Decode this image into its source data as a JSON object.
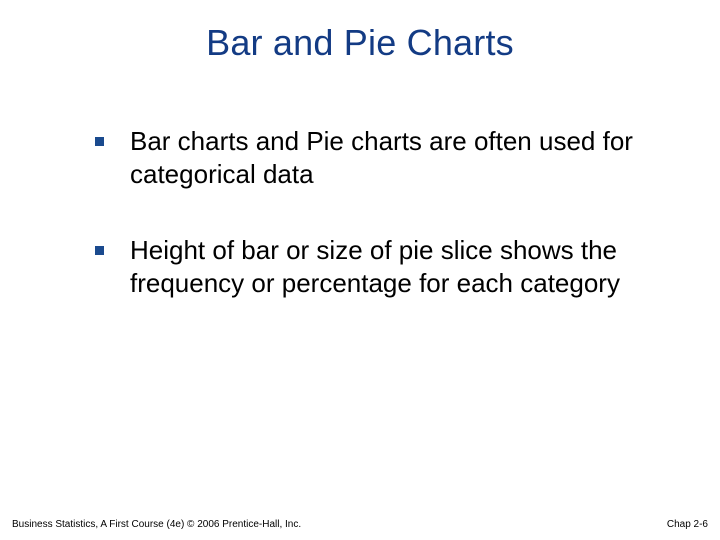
{
  "title": {
    "text": "Bar and Pie Charts",
    "color": "#133b84",
    "font_size": 36
  },
  "bullets": {
    "marker_color": "#1a4a8e",
    "text_color": "#000000",
    "font_size": 26,
    "items": [
      {
        "text": "Bar charts and Pie charts are often used for categorical data"
      },
      {
        "text": "Height of bar or size of pie slice shows the frequency or percentage for each category"
      }
    ]
  },
  "footer": {
    "left": "Business Statistics, A First Course (4e) © 2006 Prentice-Hall, Inc.",
    "right": "Chap 2-6",
    "font_size": 10,
    "color": "#000000"
  },
  "background_color": "#ffffff"
}
